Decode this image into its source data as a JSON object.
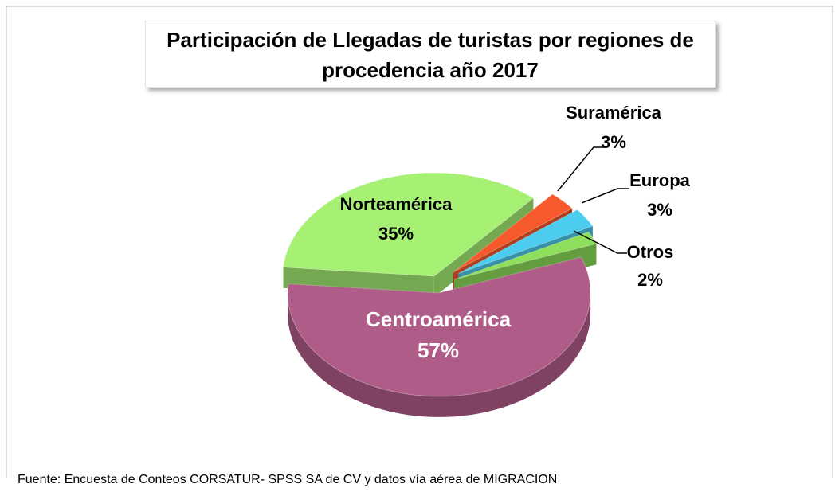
{
  "chart_data": {
    "type": "pie",
    "title": "Participación de Llegadas de turistas  por regiones de procedencia año 2017",
    "categories": [
      "Norteamérica",
      "Suramérica",
      "Europa",
      "Otros",
      "Centroamérica"
    ],
    "values": [
      35,
      3,
      3,
      2,
      57
    ],
    "value_labels": [
      "35%",
      "3%",
      "3%",
      "2%",
      "57%"
    ],
    "colors": [
      "#a6f074",
      "#f65a2c",
      "#4ccdf0",
      "#8ee05c",
      "#b05c88"
    ],
    "source": "Fuente: Encuesta de Conteos CORSATUR-  SPSS SA  de CV y datos vía aérea de MIGRACION"
  }
}
